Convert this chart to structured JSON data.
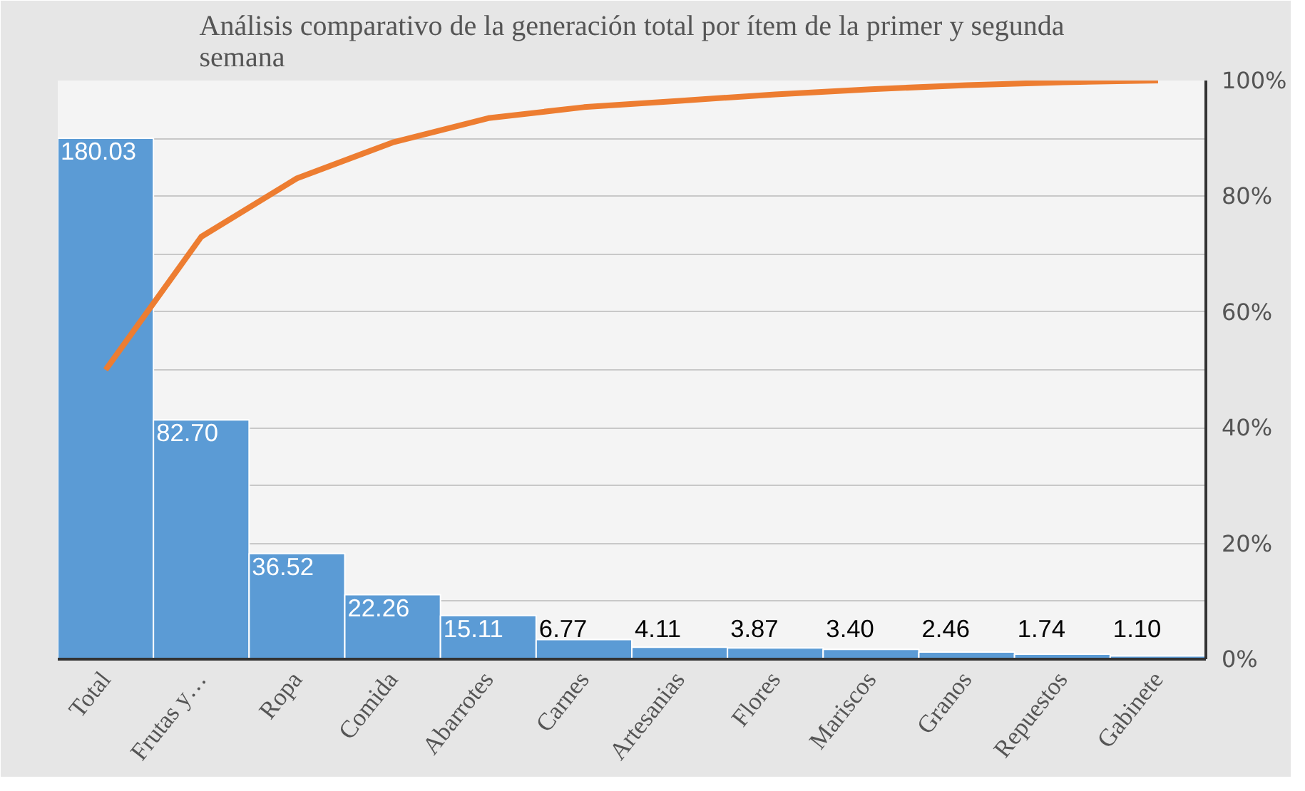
{
  "chart_data": {
    "type": "bar",
    "title": "Análisis comparativo de la generación total por ítem de la primer y segunda semana",
    "categories": [
      "Total",
      "Frutas y…",
      "Ropa",
      "Comida",
      "Abarrotes",
      "Carnes",
      "Artesanias",
      "Flores",
      "Mariscos",
      "Granos",
      "Repuestos",
      "Gabinete"
    ],
    "ylim": [
      0,
      200
    ],
    "series": [
      {
        "color": "#5b9bd5",
        "values": [
          180.03,
          82.7,
          36.52,
          22.26,
          15.11,
          6.77,
          4.11,
          3.87,
          3.4,
          2.46,
          1.74,
          1.1
        ],
        "value_labels": [
          "180.03",
          "82.70",
          "36.52",
          "22.26",
          "15.11",
          "6.77",
          "4.11",
          "3.87",
          "3.40",
          "2.46",
          "1.74",
          "1.10"
        ]
      },
      {
        "type": "line",
        "axis": "y2",
        "color": "#ed7d31",
        "values": [
          50.0,
          73.0,
          83.1,
          89.3,
          93.5,
          95.4,
          96.5,
          97.6,
          98.5,
          99.2,
          99.7,
          100
        ]
      }
    ],
    "y2lim": [
      0,
      100
    ],
    "y2ticks": [
      {
        "value": 0,
        "label": "0%"
      },
      {
        "value": 10,
        "label": null
      },
      {
        "value": 20,
        "label": "20%"
      },
      {
        "value": 30,
        "label": null
      },
      {
        "value": 40,
        "label": "40%"
      },
      {
        "value": 50,
        "label": null
      },
      {
        "value": 60,
        "label": "60%"
      },
      {
        "value": 70,
        "label": null
      },
      {
        "value": 80,
        "label": "80%"
      },
      {
        "value": 90,
        "label": null
      },
      {
        "value": 100,
        "label": "100%"
      }
    ],
    "grid": "y",
    "marker": "none",
    "line_style": "solid"
  }
}
